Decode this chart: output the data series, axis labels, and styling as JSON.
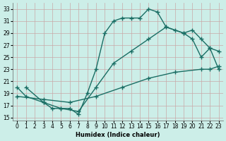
{
  "xlabel": "Humidex (Indice chaleur)",
  "bg_color": "#cceee8",
  "grid_color": "#c8a8a8",
  "line_color": "#1a6e64",
  "xlim": [
    -0.5,
    23.5
  ],
  "ylim": [
    14.5,
    34
  ],
  "xticks": [
    0,
    1,
    2,
    3,
    4,
    5,
    6,
    7,
    8,
    9,
    10,
    11,
    12,
    13,
    14,
    15,
    16,
    17,
    18,
    19,
    20,
    21,
    22,
    23
  ],
  "yticks": [
    15,
    17,
    19,
    21,
    23,
    25,
    27,
    29,
    31,
    33
  ],
  "line1_x": [
    1,
    3,
    4,
    5,
    6,
    7,
    8,
    9,
    10,
    11,
    12,
    13,
    14,
    15,
    16,
    17,
    18,
    19,
    20,
    21,
    22,
    23
  ],
  "line1_y": [
    20,
    17.5,
    16.5,
    16.5,
    16.5,
    15.5,
    19,
    23,
    29,
    31,
    31.5,
    31.5,
    31.5,
    33,
    32.5,
    30,
    29.5,
    29,
    28,
    25,
    26.5,
    23
  ],
  "line2_x": [
    0,
    1,
    3,
    5,
    7,
    9,
    11,
    13,
    15,
    17,
    19,
    20,
    21,
    22,
    23
  ],
  "line2_y": [
    20,
    18.5,
    17.5,
    16.5,
    16,
    20,
    24,
    26,
    28,
    30,
    29,
    29.5,
    28,
    26.5,
    26
  ],
  "line3_x": [
    0,
    3,
    6,
    9,
    12,
    15,
    18,
    21,
    22,
    23
  ],
  "line3_y": [
    18.5,
    18,
    17.5,
    18.5,
    20,
    21.5,
    22.5,
    23,
    23,
    23.5
  ],
  "marker": "+",
  "markersize": 4,
  "linewidth": 1.0,
  "tick_fontsize": 5.5
}
